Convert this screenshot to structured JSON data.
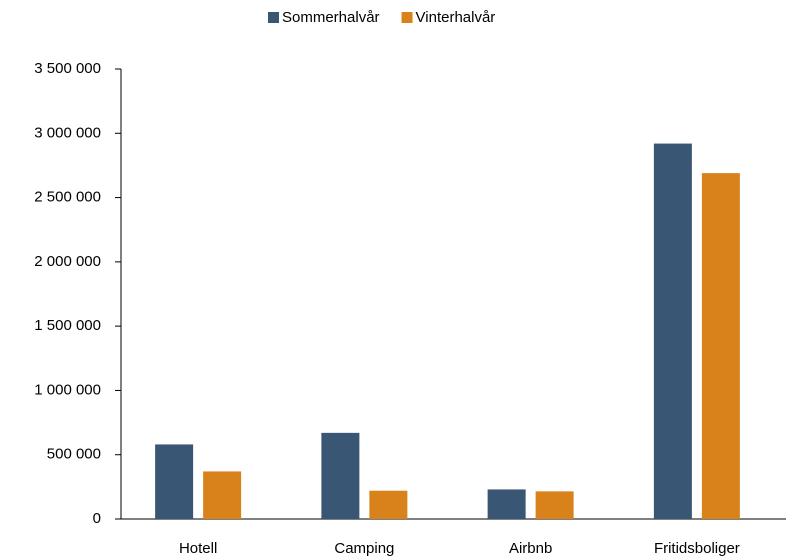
{
  "chart_data": {
    "type": "bar",
    "categories": [
      "Hotell",
      "Camping",
      "Airbnb",
      "Fritidsboliger"
    ],
    "series": [
      {
        "name": "Sommerhalvår",
        "color": "#3a5675",
        "values": [
          580000,
          670000,
          230000,
          2920000
        ]
      },
      {
        "name": "Vinterhalvår",
        "color": "#d9821b",
        "values": [
          370000,
          220000,
          215000,
          2690000
        ]
      }
    ],
    "ylim": [
      0,
      3500000
    ],
    "yticks": [
      0,
      {
        "value": 500000,
        "label": "500 000"
      },
      {
        "value": 1000000,
        "label": "1 000 000"
      },
      {
        "value": 1500000,
        "label": "1 500 000"
      },
      {
        "value": 2000000,
        "label": "2 000 000"
      },
      {
        "value": 2500000,
        "label": "2 500 000"
      },
      {
        "value": 3000000,
        "label": "3 000 000"
      },
      {
        "value": 3500000,
        "label": "3 500 000"
      }
    ],
    "grid": false,
    "legend": "top"
  }
}
